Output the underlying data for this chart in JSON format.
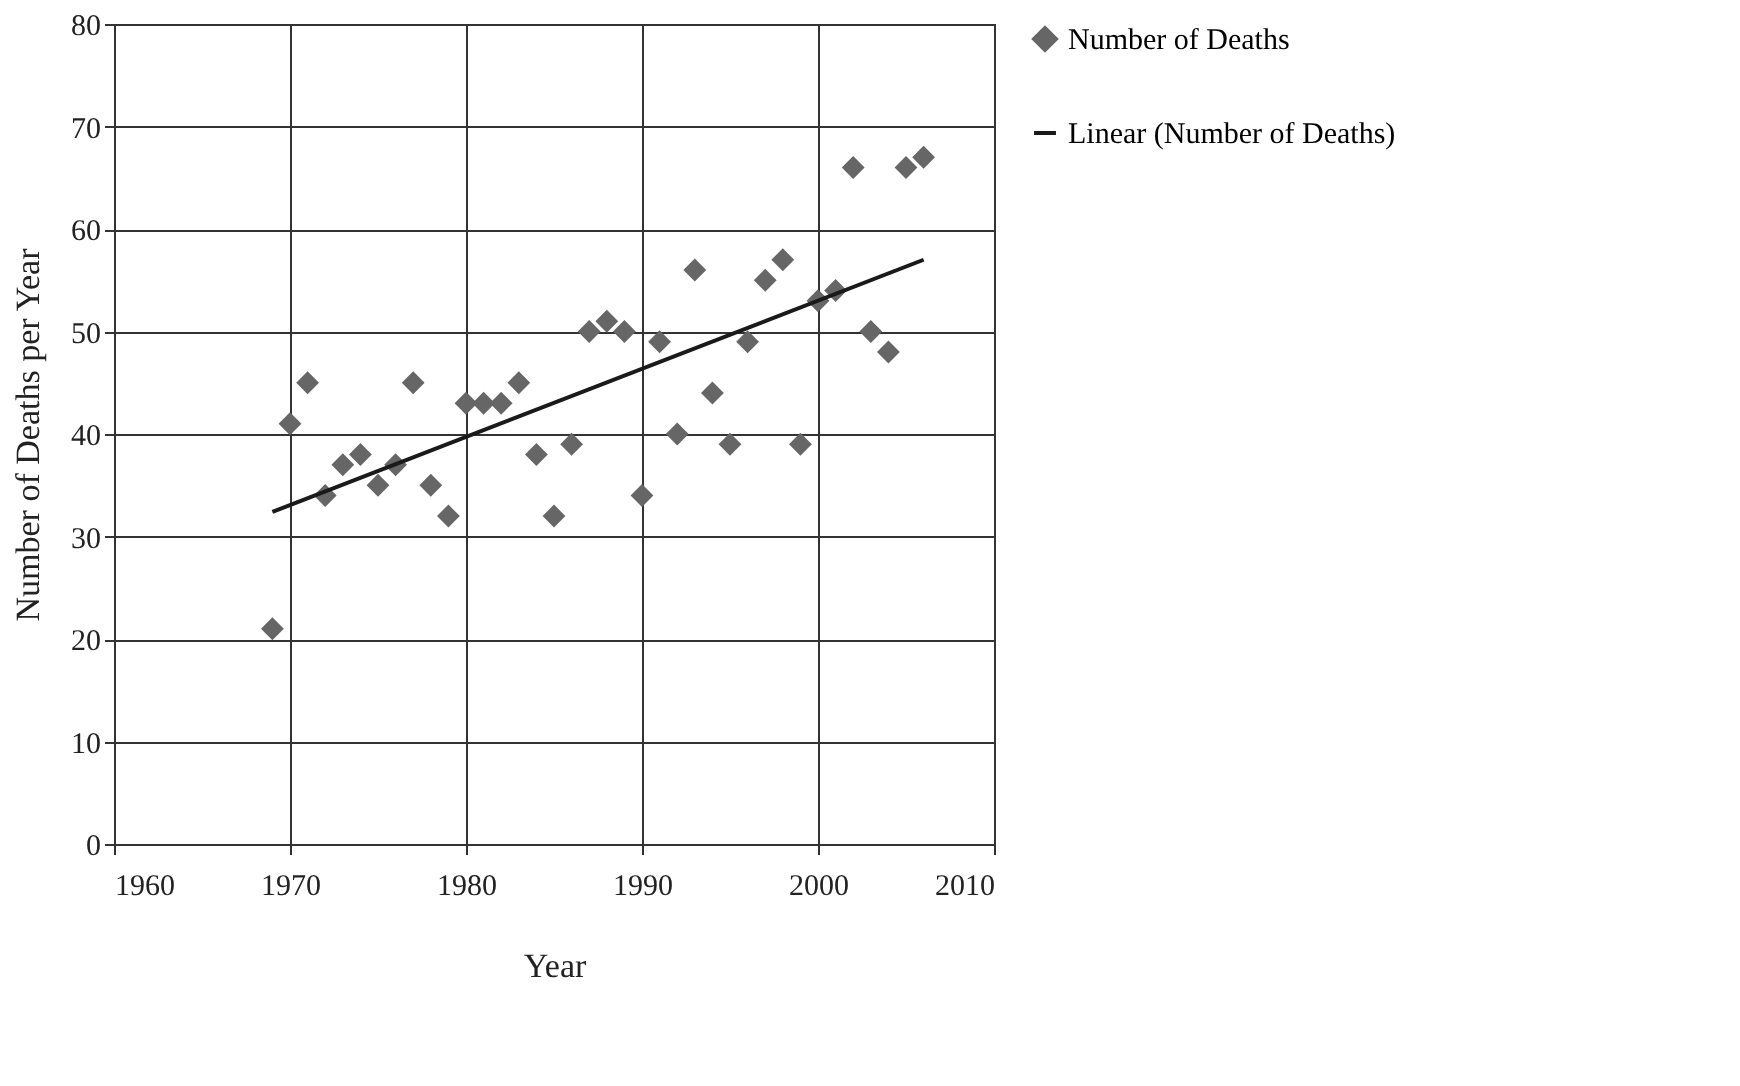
{
  "chart_data": {
    "type": "scatter",
    "xlabel": "Year",
    "ylabel": "Number of Deaths per Year",
    "series": [
      {
        "name": "Number of Deaths",
        "type": "scatter",
        "color": "#666666",
        "marker": "diamond",
        "x": [
          1969,
          1970,
          1971,
          1972,
          1973,
          1974,
          1975,
          1976,
          1977,
          1978,
          1979,
          1980,
          1981,
          1982,
          1983,
          1984,
          1985,
          1986,
          1987,
          1988,
          1989,
          1990,
          1991,
          1992,
          1993,
          1994,
          1995,
          1996,
          1997,
          1998,
          1999,
          2000,
          2001,
          2002,
          2003,
          2004,
          2005,
          2006
        ],
        "values": [
          21,
          41,
          45,
          34,
          37,
          38,
          35,
          37,
          45,
          35,
          32,
          43,
          43,
          43,
          45,
          38,
          32,
          39,
          50,
          51,
          50,
          34,
          49,
          40,
          56,
          44,
          39,
          49,
          55,
          57,
          39,
          53,
          54,
          66,
          50,
          48,
          66,
          67
        ]
      },
      {
        "name": "Linear (Number of Deaths)",
        "type": "line",
        "color": "#1a1a1a",
        "marker": "none",
        "line_style": "solid",
        "x": [
          1969,
          2006
        ],
        "values": [
          32.4,
          57
        ]
      }
    ],
    "xlim": [
      1960,
      2010
    ],
    "xticks": [
      1960,
      1970,
      1980,
      1990,
      2000,
      2010
    ],
    "ylim": [
      0,
      80
    ],
    "yticks": [
      0,
      10,
      20,
      30,
      40,
      50,
      60,
      70,
      80
    ],
    "grid": true,
    "legend": "right"
  }
}
